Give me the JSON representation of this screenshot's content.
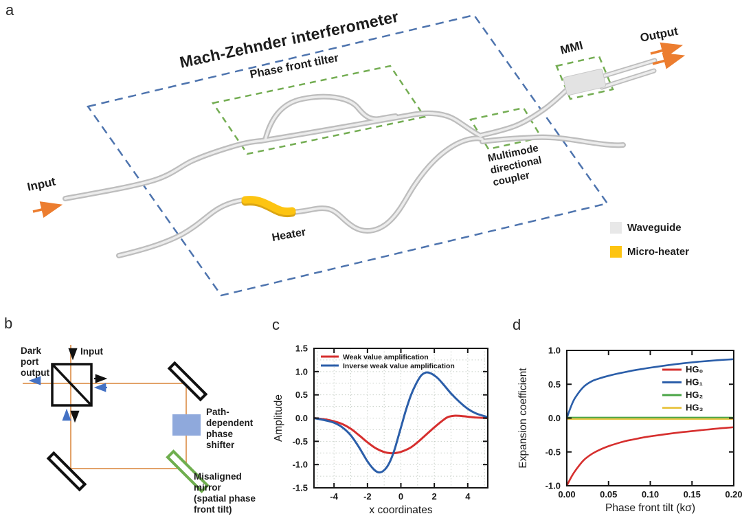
{
  "panel_letters": {
    "a": "a",
    "b": "b",
    "c": "c",
    "d": "d"
  },
  "panel_a": {
    "title": "Mach-Zehnder interferometer",
    "phase_front_tilter": "Phase front tilter",
    "mmi": "MMI",
    "output": "Output",
    "input": "Input",
    "heater": "Heater",
    "coupler_lines": [
      "Multimode",
      "directional",
      "coupler"
    ],
    "legend": [
      {
        "label": "Waveguide",
        "color": "#e8e8e8"
      },
      {
        "label": "Micro-heater",
        "color": "#fdc411"
      }
    ],
    "colors": {
      "chip_outline_blue": "#4e74ae",
      "component_box_green": "#74ad53",
      "waveguide_gray": "#c4c4c4",
      "heater_yellow": "#fdc411",
      "arrow_orange": "#ec7d2f"
    }
  },
  "panel_b": {
    "dark_port_lines": [
      "Dark",
      "port",
      "output"
    ],
    "input": "Input",
    "phase_shifter_lines": [
      "Path-",
      "dependent",
      "phase",
      "shifter"
    ],
    "mirror_lines": [
      "Misaligned",
      "mirror",
      "(spatial phase",
      "front tilt)"
    ],
    "colors": {
      "beam": "#e2a269",
      "phase_shifter": "#8fa9dc",
      "misaligned_mirror": "#6fae4e"
    }
  },
  "chart_data": [
    {
      "id": "c",
      "type": "line",
      "xlabel": "x coordinates",
      "ylabel": "Amplitude",
      "xlim": [
        -5.2,
        5.2
      ],
      "ylim": [
        -1.5,
        1.5
      ],
      "xticks": [
        -4,
        -2,
        0,
        2,
        4
      ],
      "xtick_labels": [
        "-4",
        "-2",
        "0",
        "2",
        "4"
      ],
      "yticks": [
        -1.5,
        -1.0,
        -0.5,
        0.0,
        0.5,
        1.0,
        1.5
      ],
      "ytick_labels": [
        "-1.5",
        "-1.0",
        "-0.5",
        "0.0",
        "0.5",
        "1.0",
        "1.5"
      ],
      "grid": true,
      "legend_position": "top-left",
      "series": [
        {
          "name": "Weak value amplification",
          "color": "#d62f2e",
          "points": [
            [
              -5.2,
              0
            ],
            [
              -4.5,
              -0.03
            ],
            [
              -4,
              -0.07
            ],
            [
              -3.5,
              -0.13
            ],
            [
              -3,
              -0.23
            ],
            [
              -2.5,
              -0.37
            ],
            [
              -2,
              -0.52
            ],
            [
              -1.5,
              -0.65
            ],
            [
              -1,
              -0.73
            ],
            [
              -0.6,
              -0.755
            ],
            [
              -0.2,
              -0.745
            ],
            [
              0.2,
              -0.7
            ],
            [
              0.6,
              -0.63
            ],
            [
              1,
              -0.52
            ],
            [
              1.5,
              -0.36
            ],
            [
              2,
              -0.2
            ],
            [
              2.4,
              -0.08
            ],
            [
              2.8,
              0.02
            ],
            [
              3.2,
              0.05
            ],
            [
              3.6,
              0.045
            ],
            [
              4,
              0.03
            ],
            [
              4.5,
              0.012
            ],
            [
              5.2,
              0
            ]
          ]
        },
        {
          "name": "Inverse weak value amplification",
          "color": "#2b5ea9",
          "points": [
            [
              -5.2,
              0
            ],
            [
              -4.5,
              -0.05
            ],
            [
              -4,
              -0.1
            ],
            [
              -3.5,
              -0.2
            ],
            [
              -3,
              -0.37
            ],
            [
              -2.5,
              -0.63
            ],
            [
              -2,
              -0.93
            ],
            [
              -1.6,
              -1.11
            ],
            [
              -1.3,
              -1.17
            ],
            [
              -1,
              -1.12
            ],
            [
              -0.7,
              -0.97
            ],
            [
              -0.4,
              -0.7
            ],
            [
              -0.1,
              -0.33
            ],
            [
              0.1,
              -0.08
            ],
            [
              0.3,
              0.17
            ],
            [
              0.6,
              0.49
            ],
            [
              0.9,
              0.73
            ],
            [
              1.2,
              0.91
            ],
            [
              1.5,
              0.98
            ],
            [
              1.8,
              0.96
            ],
            [
              2.2,
              0.86
            ],
            [
              2.6,
              0.7
            ],
            [
              3,
              0.53
            ],
            [
              3.5,
              0.35
            ],
            [
              4,
              0.2
            ],
            [
              4.5,
              0.1
            ],
            [
              5.2,
              0.02
            ]
          ]
        }
      ]
    },
    {
      "id": "d",
      "type": "line",
      "xlabel": "Phase front tilt (kσ)",
      "ylabel": "Expansion coefficient",
      "xlim": [
        0,
        0.2
      ],
      "ylim": [
        -1,
        1
      ],
      "xticks": [
        0,
        0.05,
        0.1,
        0.15,
        0.2
      ],
      "xtick_labels": [
        "0.00",
        "0.05",
        "0.10",
        "0.15",
        "0.20"
      ],
      "yticks": [
        -1.0,
        -0.5,
        0.0,
        0.5,
        1.0
      ],
      "ytick_labels": [
        "-1.0",
        "-0.5",
        "0.0",
        "0.5",
        "1.0"
      ],
      "grid": false,
      "legend_position": "right",
      "series": [
        {
          "name": "HG₀",
          "color": "#d62f2e",
          "points": [
            [
              0,
              -1.0
            ],
            [
              0.005,
              -0.88
            ],
            [
              0.01,
              -0.78
            ],
            [
              0.02,
              -0.625
            ],
            [
              0.03,
              -0.53
            ],
            [
              0.04,
              -0.465
            ],
            [
              0.05,
              -0.415
            ],
            [
              0.06,
              -0.375
            ],
            [
              0.07,
              -0.34
            ],
            [
              0.08,
              -0.315
            ],
            [
              0.09,
              -0.29
            ],
            [
              0.1,
              -0.27
            ],
            [
              0.12,
              -0.235
            ],
            [
              0.14,
              -0.205
            ],
            [
              0.16,
              -0.18
            ],
            [
              0.18,
              -0.155
            ],
            [
              0.2,
              -0.135
            ]
          ]
        },
        {
          "name": "HG₁",
          "color": "#2b5ea9",
          "points": [
            [
              0,
              0
            ],
            [
              0.005,
              0.17
            ],
            [
              0.01,
              0.3
            ],
            [
              0.02,
              0.46
            ],
            [
              0.03,
              0.545
            ],
            [
              0.04,
              0.59
            ],
            [
              0.05,
              0.625
            ],
            [
              0.06,
              0.655
            ],
            [
              0.07,
              0.68
            ],
            [
              0.08,
              0.705
            ],
            [
              0.09,
              0.725
            ],
            [
              0.1,
              0.745
            ],
            [
              0.12,
              0.78
            ],
            [
              0.14,
              0.81
            ],
            [
              0.16,
              0.835
            ],
            [
              0.18,
              0.855
            ],
            [
              0.2,
              0.87
            ]
          ]
        },
        {
          "name": "HG₂",
          "color": "#4aa546",
          "points": [
            [
              0,
              0.006
            ],
            [
              0.05,
              0.006
            ],
            [
              0.1,
              0.006
            ],
            [
              0.15,
              0.006
            ],
            [
              0.2,
              0.006
            ]
          ]
        },
        {
          "name": "HG₃",
          "color": "#e9c84d",
          "points": [
            [
              0,
              -0.014
            ],
            [
              0.05,
              -0.014
            ],
            [
              0.1,
              -0.014
            ],
            [
              0.15,
              -0.014
            ],
            [
              0.2,
              -0.014
            ]
          ]
        }
      ]
    }
  ]
}
